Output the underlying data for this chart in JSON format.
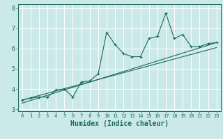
{
  "xlabel": "Humidex (Indice chaleur)",
  "background_color": "#cce9e9",
  "grid_color": "#ffffff",
  "line_color": "#1a6b5a",
  "xlim": [
    -0.5,
    23.5
  ],
  "ylim": [
    2.9,
    8.2
  ],
  "xticks": [
    0,
    1,
    2,
    3,
    4,
    5,
    6,
    7,
    8,
    9,
    10,
    11,
    12,
    13,
    14,
    15,
    16,
    17,
    18,
    19,
    20,
    21,
    22,
    23
  ],
  "yticks": [
    3,
    4,
    5,
    6,
    7,
    8
  ],
  "main_line_x": [
    0,
    1,
    2,
    3,
    4,
    5,
    6,
    7,
    8,
    9,
    10,
    11,
    12,
    13,
    14,
    15,
    16,
    17,
    18,
    19,
    20,
    21,
    22,
    23
  ],
  "main_line_y": [
    3.45,
    3.55,
    3.6,
    3.6,
    3.95,
    4.0,
    3.6,
    4.35,
    4.4,
    4.75,
    6.8,
    6.2,
    5.75,
    5.6,
    5.6,
    6.5,
    6.6,
    7.75,
    6.5,
    6.7,
    6.1,
    6.1,
    6.25,
    6.3
  ],
  "trend_line1_x": [
    0,
    23
  ],
  "trend_line1_y": [
    3.45,
    6.05
  ],
  "trend_line2_x": [
    0,
    23
  ],
  "trend_line2_y": [
    3.3,
    6.3
  ],
  "font_size_xlabel": 7,
  "font_size_ticks_x": 5,
  "font_size_ticks_y": 6
}
